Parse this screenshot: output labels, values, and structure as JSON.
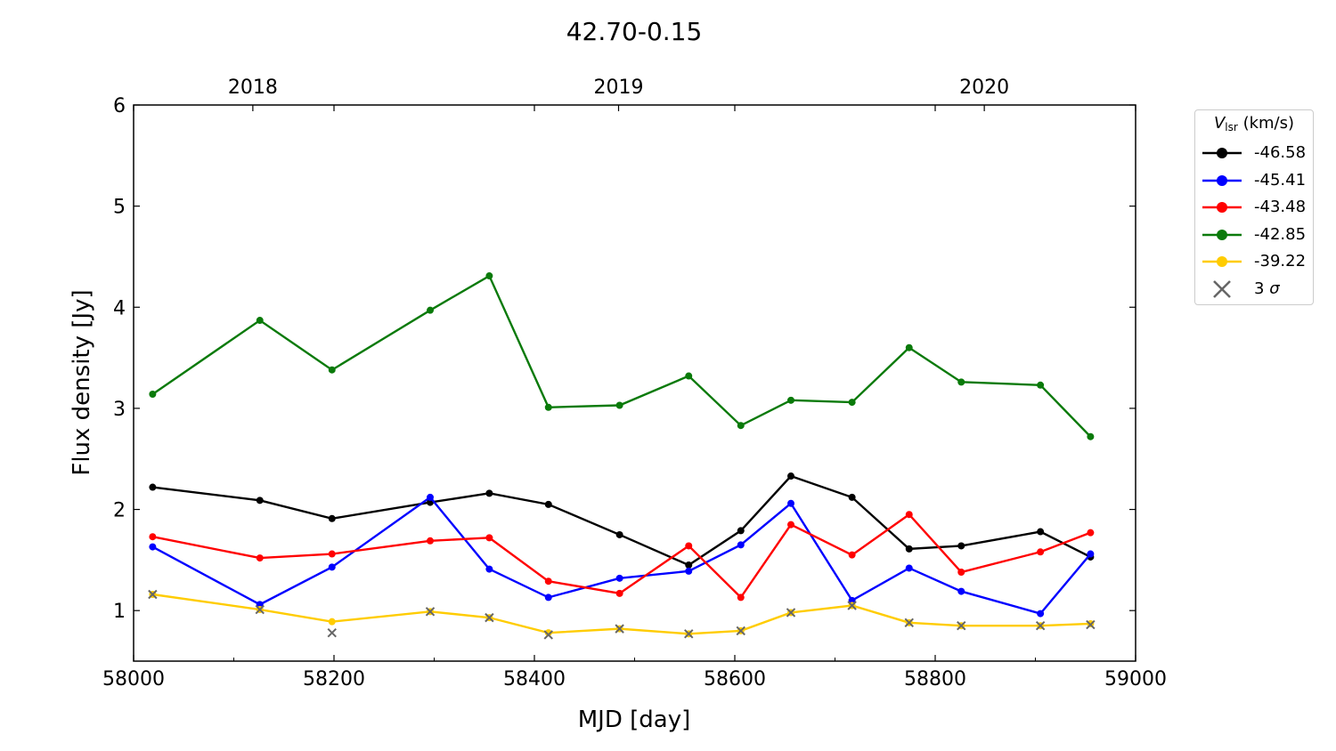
{
  "chart_data": {
    "type": "line",
    "title": "42.70-0.15",
    "xlabel": "MJD [day]",
    "ylabel": "Flux density [Jy]",
    "xlim": [
      58000,
      59000
    ],
    "ylim": [
      0.5,
      6
    ],
    "xticks": [
      58000,
      58200,
      58400,
      58600,
      58800,
      59000
    ],
    "yticks": [
      1,
      2,
      3,
      4,
      5,
      6
    ],
    "top_axis": {
      "ticks": [
        {
          "label": "2018",
          "mjd": 58119
        },
        {
          "label": "2019",
          "mjd": 58484
        },
        {
          "label": "2020",
          "mjd": 58849
        }
      ]
    },
    "x": [
      58019,
      58126,
      58198,
      58296,
      58355,
      58414,
      58485,
      58554,
      58606,
      58656,
      58717,
      58774,
      58826,
      58905,
      58955
    ],
    "series": [
      {
        "name": "-46.58",
        "color": "#000000",
        "values": [
          2.22,
          2.09,
          1.91,
          2.07,
          2.16,
          2.05,
          1.75,
          1.45,
          1.79,
          2.33,
          2.12,
          1.61,
          1.64,
          1.78,
          1.53
        ]
      },
      {
        "name": "-45.41",
        "color": "#0000ff",
        "values": [
          1.63,
          1.06,
          1.43,
          2.12,
          1.41,
          1.13,
          1.32,
          1.39,
          1.65,
          2.06,
          1.1,
          1.42,
          1.19,
          0.97,
          1.56
        ]
      },
      {
        "name": "-43.48",
        "color": "#ff0000",
        "values": [
          1.73,
          1.52,
          1.56,
          1.69,
          1.72,
          1.29,
          1.17,
          1.64,
          1.13,
          1.85,
          1.55,
          1.95,
          1.38,
          1.58,
          1.77
        ]
      },
      {
        "name": "-42.85",
        "color": "#0a7a0a",
        "values": [
          3.14,
          3.87,
          3.38,
          3.97,
          4.31,
          3.01,
          3.03,
          3.32,
          2.83,
          3.08,
          3.06,
          3.6,
          3.26,
          3.23,
          2.72
        ]
      },
      {
        "name": "-39.22",
        "color": "#ffcc00",
        "values": [
          1.16,
          1.01,
          0.89,
          0.99,
          0.93,
          0.78,
          0.82,
          0.77,
          0.8,
          0.98,
          1.05,
          0.88,
          0.85,
          0.85,
          0.87
        ]
      }
    ],
    "sigma3": {
      "name": "3",
      "symbol": "σ",
      "color": "#666666",
      "x": [
        58019,
        58126,
        58198,
        58296,
        58355,
        58414,
        58485,
        58554,
        58606,
        58656,
        58717,
        58774,
        58826,
        58905,
        58955
      ],
      "values": [
        1.16,
        1.01,
        0.78,
        0.99,
        0.93,
        0.76,
        0.82,
        0.77,
        0.8,
        0.98,
        1.05,
        0.88,
        0.85,
        0.85,
        0.86
      ]
    },
    "legend": {
      "title_main": "V",
      "title_sub": "lsr",
      "title_unit": "(km/s)",
      "placement": "outside-right"
    },
    "grid": false
  }
}
